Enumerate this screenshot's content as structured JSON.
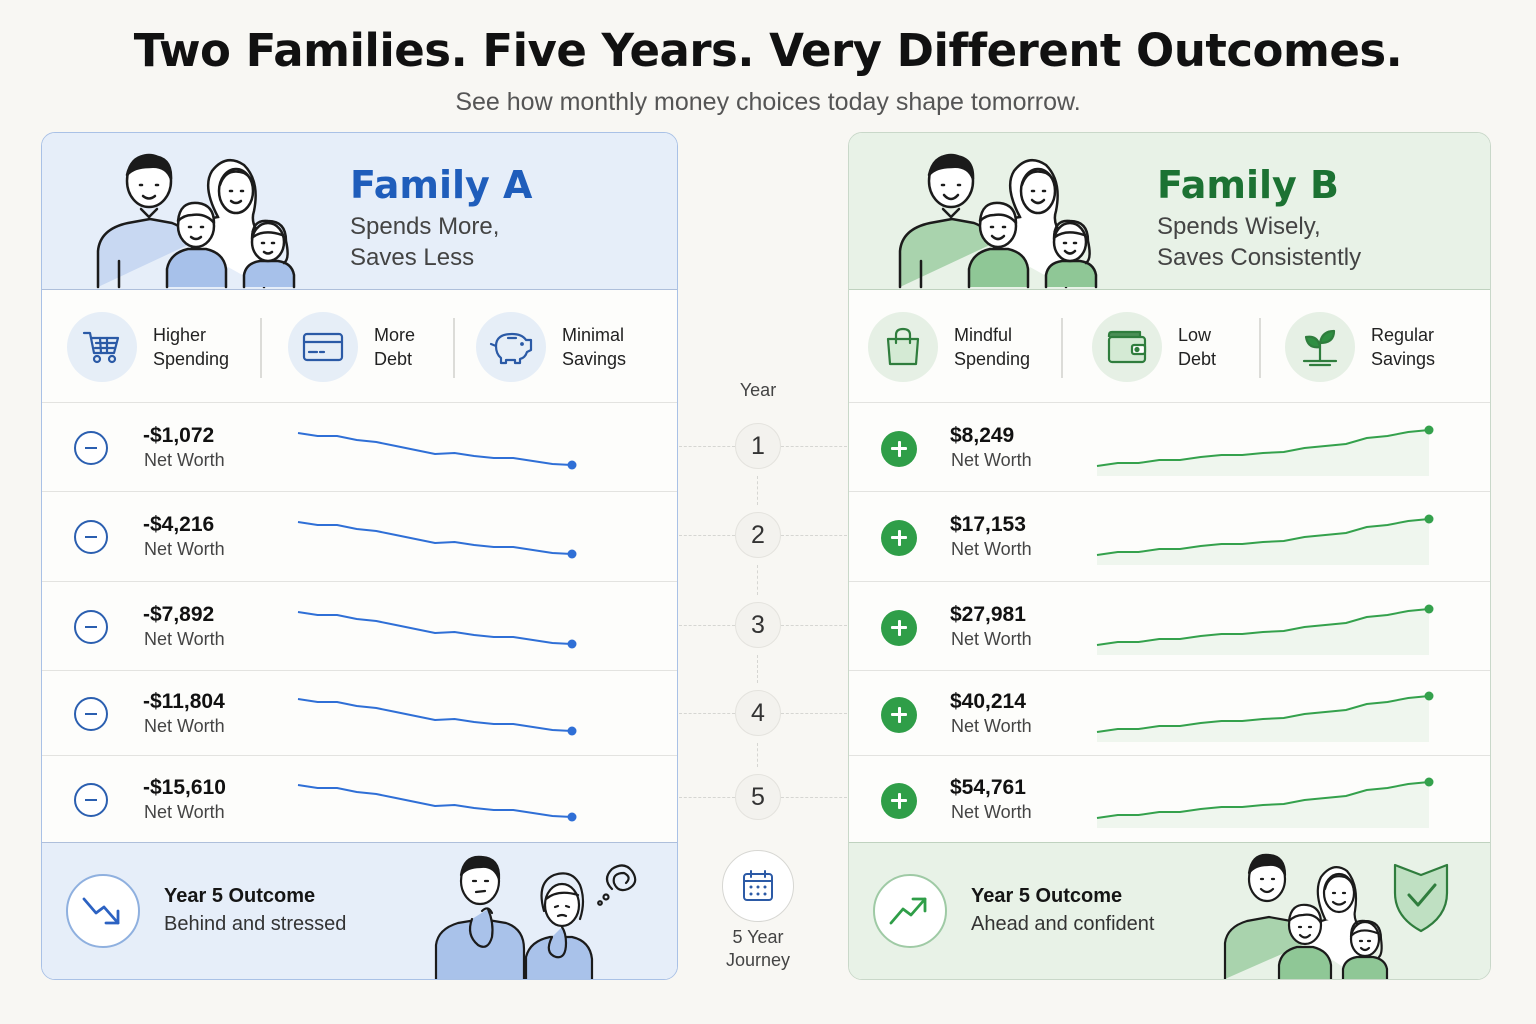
{
  "header": {
    "title": "Two Families. Five Years. Very Different Outcomes.",
    "subtitle": "See how monthly money choices today shape tomorrow."
  },
  "colors": {
    "family_a_accent": "#1f5dbb",
    "family_b_accent": "#1c7233",
    "decline_line": "#2f6fd6",
    "growth_line": "#34a14c"
  },
  "timeline": {
    "label": "Year",
    "years": [
      "1",
      "2",
      "3",
      "4",
      "5"
    ],
    "journey_icon": "calendar-icon",
    "journey_label_1": "5 Year",
    "journey_label_2": "Journey"
  },
  "family_a": {
    "name": "Family A",
    "desc_line1": "Spends More,",
    "desc_line2": "Saves Less",
    "traits": [
      {
        "icon": "shopping-cart-icon",
        "line1": "Higher",
        "line2": "Spending"
      },
      {
        "icon": "credit-card-icon",
        "line1": "More",
        "line2": "Debt"
      },
      {
        "icon": "piggy-bank-icon",
        "line1": "Minimal",
        "line2": "Savings"
      }
    ],
    "rows": [
      {
        "icon": "minus-circle-icon",
        "value": "-$1,072",
        "label": "Net Worth"
      },
      {
        "icon": "minus-circle-icon",
        "value": "-$4,216",
        "label": "Net Worth"
      },
      {
        "icon": "minus-circle-icon",
        "value": "-$7,892",
        "label": "Net Worth"
      },
      {
        "icon": "minus-circle-icon",
        "value": "-$11,804",
        "label": "Net Worth"
      },
      {
        "icon": "minus-circle-icon",
        "value": "-$15,610",
        "label": "Net Worth"
      }
    ],
    "trend": "declining",
    "outcome": {
      "icon": "trend-down-icon",
      "title": "Year 5 Outcome",
      "text": "Behind and stressed"
    }
  },
  "family_b": {
    "name": "Family B",
    "desc_line1": "Spends Wisely,",
    "desc_line2": "Saves Consistently",
    "traits": [
      {
        "icon": "shopping-bag-icon",
        "line1": "Mindful",
        "line2": "Spending"
      },
      {
        "icon": "wallet-icon",
        "line1": "Low",
        "line2": "Debt"
      },
      {
        "icon": "sprout-icon",
        "line1": "Regular",
        "line2": "Savings"
      }
    ],
    "rows": [
      {
        "icon": "plus-circle-icon",
        "value": "$8,249",
        "label": "Net Worth"
      },
      {
        "icon": "plus-circle-icon",
        "value": "$17,153",
        "label": "Net Worth"
      },
      {
        "icon": "plus-circle-icon",
        "value": "$27,981",
        "label": "Net Worth"
      },
      {
        "icon": "plus-circle-icon",
        "value": "$40,214",
        "label": "Net Worth"
      },
      {
        "icon": "plus-circle-icon",
        "value": "$54,761",
        "label": "Net Worth"
      }
    ],
    "trend": "growing",
    "outcome": {
      "icon": "trend-up-icon",
      "title": "Year 5 Outcome",
      "text": "Ahead and confident"
    }
  }
}
